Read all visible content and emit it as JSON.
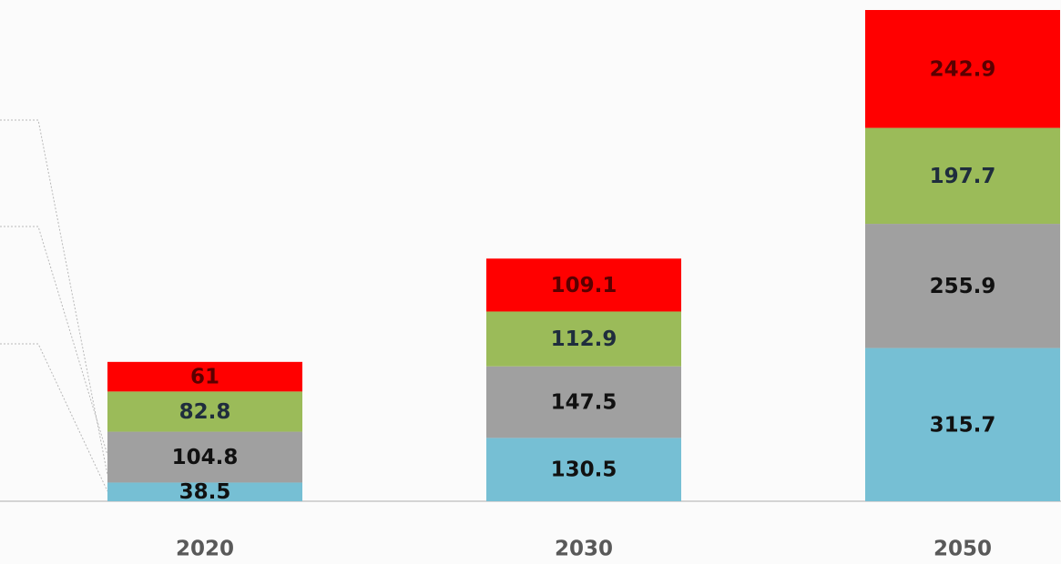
{
  "chart_data": {
    "type": "stacked_bar",
    "categories": [
      "2020",
      "2030",
      "2050"
    ],
    "series": [
      {
        "color": "#76bfd4",
        "label_color": "#111111",
        "values": [
          38.5,
          130.5,
          315.7
        ]
      },
      {
        "color": "#a0a0a0",
        "label_color": "#111111",
        "values": [
          104.8,
          147.5,
          255.9
        ]
      },
      {
        "color": "#9bbb59",
        "label_color": "#1f2d3d",
        "values": [
          82.8,
          112.9,
          197.7
        ]
      },
      {
        "color": "#ff0000",
        "label_color": "#5a0000",
        "values": [
          61,
          109.1,
          242.9
        ]
      }
    ]
  }
}
